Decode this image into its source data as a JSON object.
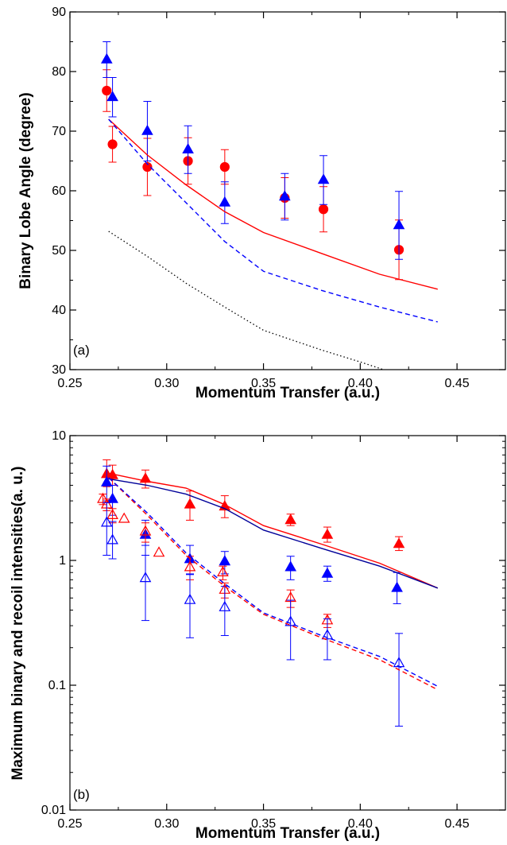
{
  "chart_data": [
    {
      "type": "scatter",
      "panel_label": "(a)",
      "xlabel": "Momentum Transfer (a.u.)",
      "ylabel": "Binary Lobe Angle (degree)",
      "xlim": [
        0.25,
        0.475
      ],
      "ylim": [
        30,
        90
      ],
      "y_scale": "linear",
      "x_ticks": [
        0.25,
        0.3,
        0.35,
        0.4,
        0.45
      ],
      "x_tick_labels": [
        "0.25",
        "0.30",
        "0.35",
        "0.40",
        "0.45"
      ],
      "y_ticks": [
        30,
        40,
        50,
        60,
        70,
        80,
        90
      ],
      "y_tick_labels": [
        "30",
        "40",
        "50",
        "60",
        "70",
        "80",
        "90"
      ],
      "grid": false,
      "series": [
        {
          "kind": "points",
          "marker": "circle",
          "filled": true,
          "color": "#ff0000",
          "x": [
            0.269,
            0.272,
            0.29,
            0.311,
            0.33,
            0.361,
            0.381,
            0.42
          ],
          "y": [
            76.8,
            67.8,
            64.0,
            65.0,
            64.0,
            58.8,
            56.9,
            50.1
          ],
          "err": [
            3.5,
            3.0,
            4.8,
            3.9,
            2.9,
            3.4,
            3.8,
            5.0
          ]
        },
        {
          "kind": "points",
          "marker": "triangle",
          "filled": true,
          "color": "#0000ff",
          "x": [
            0.269,
            0.272,
            0.29,
            0.311,
            0.33,
            0.361,
            0.381,
            0.42
          ],
          "y": [
            82.0,
            75.7,
            70.0,
            66.9,
            58.0,
            59.0,
            61.8,
            54.2
          ],
          "err": [
            3.0,
            3.3,
            5.0,
            4.0,
            3.5,
            3.9,
            4.1,
            5.7
          ]
        },
        {
          "kind": "line",
          "style": "solid",
          "color": "#ff0000",
          "x": [
            0.27,
            0.29,
            0.31,
            0.33,
            0.35,
            0.38,
            0.41,
            0.44
          ],
          "y": [
            72.0,
            66.0,
            61.0,
            56.5,
            53.0,
            49.5,
            46.0,
            43.5
          ]
        },
        {
          "kind": "line",
          "style": "dashed",
          "color": "#0000ff",
          "x": [
            0.27,
            0.29,
            0.31,
            0.33,
            0.35,
            0.38,
            0.41,
            0.44
          ],
          "y": [
            72.0,
            64.5,
            58.0,
            51.5,
            46.5,
            43.3,
            40.5,
            38.0
          ]
        },
        {
          "kind": "line",
          "style": "dotted",
          "color": "#000000",
          "x": [
            0.27,
            0.29,
            0.31,
            0.33,
            0.35,
            0.38,
            0.4,
            0.412
          ],
          "y": [
            53.2,
            49.0,
            44.5,
            40.5,
            36.6,
            33.3,
            31.3,
            30.0
          ]
        }
      ]
    },
    {
      "type": "scatter",
      "panel_label": "(b)",
      "xlabel": "Momentum Transfer (a.u.)",
      "ylabel": "Maximum binary and recoil intensities(a. u.)",
      "xlim": [
        0.25,
        0.475
      ],
      "ylim": [
        0.01,
        10
      ],
      "y_scale": "log",
      "x_ticks": [
        0.25,
        0.3,
        0.35,
        0.4,
        0.45
      ],
      "x_tick_labels": [
        "0.25",
        "0.30",
        "0.35",
        "0.40",
        "0.45"
      ],
      "y_ticks": [
        0.01,
        0.1,
        1,
        10
      ],
      "y_tick_labels": [
        "0.01",
        "0.1",
        "1",
        "10"
      ],
      "grid": false,
      "series": [
        {
          "kind": "points",
          "marker": "triangle",
          "filled": true,
          "color": "#ff0000",
          "x": [
            0.269,
            0.272,
            0.289,
            0.312,
            0.33,
            0.364,
            0.383,
            0.42
          ],
          "y": [
            4.9,
            4.8,
            4.5,
            2.8,
            2.7,
            2.1,
            1.6,
            1.35
          ],
          "err_lo": [
            1.0,
            0.8,
            0.7,
            0.7,
            0.5,
            0.2,
            0.2,
            0.15
          ],
          "err_hi": [
            1.5,
            1.0,
            0.8,
            0.8,
            0.6,
            0.25,
            0.25,
            0.2
          ]
        },
        {
          "kind": "points",
          "marker": "triangle",
          "filled": true,
          "color": "#0000ff",
          "x": [
            0.269,
            0.272,
            0.289,
            0.312,
            0.33,
            0.364,
            0.383,
            0.419
          ],
          "y": [
            4.2,
            3.1,
            1.6,
            1.02,
            0.98,
            0.88,
            0.78,
            0.6
          ],
          "err_lo": [
            1.2,
            0.8,
            0.5,
            0.25,
            0.2,
            0.18,
            0.1,
            0.15
          ],
          "err_hi": [
            1.5,
            0.9,
            0.5,
            0.3,
            0.2,
            0.2,
            0.12,
            0.2
          ]
        },
        {
          "kind": "points",
          "marker": "triangle",
          "filled": false,
          "color": "#ff0000",
          "x": [
            0.267,
            0.269,
            0.272,
            0.278,
            0.289,
            0.296,
            0.312,
            0.329,
            0.33,
            0.364,
            0.383
          ],
          "y": [
            3.1,
            2.8,
            2.3,
            2.15,
            1.7,
            1.15,
            0.88,
            0.8,
            0.58,
            0.5,
            0.33
          ],
          "err_lo": [
            0.3,
            0.3,
            0.3,
            0,
            0.3,
            0,
            0.18,
            0.1,
            0.08,
            0.08,
            0.04
          ],
          "err_hi": [
            0.3,
            0.3,
            0.3,
            0,
            0.3,
            0,
            0.2,
            0.1,
            0.08,
            0.08,
            0.04
          ]
        },
        {
          "kind": "points",
          "marker": "triangle",
          "filled": false,
          "color": "#0000ff",
          "x": [
            0.269,
            0.272,
            0.289,
            0.312,
            0.33,
            0.364,
            0.383,
            0.42
          ],
          "y": [
            2.0,
            1.45,
            0.72,
            0.48,
            0.42,
            0.32,
            0.25,
            0.15
          ],
          "err_lo": [
            0.9,
            0.42,
            0.39,
            0.24,
            0.17,
            0.16,
            0.09,
            0.103
          ],
          "err_hi": [
            0.9,
            0.6,
            0.6,
            0.3,
            0.2,
            0.16,
            0.09,
            0.11
          ]
        },
        {
          "kind": "line",
          "style": "solid",
          "color": "#ff0000",
          "x": [
            0.27,
            0.29,
            0.31,
            0.33,
            0.35,
            0.38,
            0.41,
            0.44
          ],
          "y": [
            5.0,
            4.3,
            3.8,
            2.8,
            1.9,
            1.35,
            0.95,
            0.6
          ]
        },
        {
          "kind": "line",
          "style": "solid",
          "color": "#000099",
          "x": [
            0.27,
            0.29,
            0.31,
            0.33,
            0.35,
            0.38,
            0.41,
            0.44
          ],
          "y": [
            4.5,
            4.0,
            3.4,
            2.6,
            1.75,
            1.25,
            0.9,
            0.6
          ]
        },
        {
          "kind": "line",
          "style": "dashed",
          "color": "#ff0000",
          "x": [
            0.27,
            0.29,
            0.31,
            0.33,
            0.35,
            0.38,
            0.41,
            0.44
          ],
          "y": [
            4.6,
            2.3,
            1.1,
            0.62,
            0.37,
            0.24,
            0.16,
            0.092
          ]
        },
        {
          "kind": "line",
          "style": "dashed",
          "color": "#0000ff",
          "x": [
            0.27,
            0.29,
            0.31,
            0.33,
            0.35,
            0.38,
            0.41,
            0.44
          ],
          "y": [
            4.6,
            2.4,
            1.15,
            0.65,
            0.38,
            0.25,
            0.17,
            0.098
          ]
        }
      ]
    }
  ]
}
